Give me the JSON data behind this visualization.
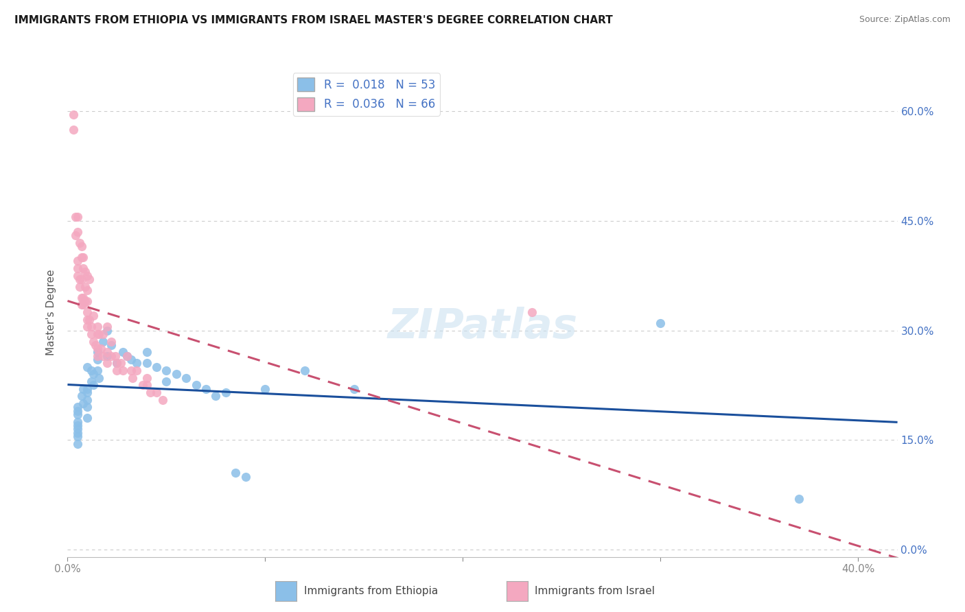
{
  "title": "IMMIGRANTS FROM ETHIOPIA VS IMMIGRANTS FROM ISRAEL MASTER'S DEGREE CORRELATION CHART",
  "source": "Source: ZipAtlas.com",
  "ylabel": "Master's Degree",
  "yticks": [
    0.0,
    0.15,
    0.3,
    0.45,
    0.6
  ],
  "ytick_labels": [
    "0.0%",
    "15.0%",
    "30.0%",
    "45.0%",
    "60.0%"
  ],
  "xlim": [
    0.0,
    0.42
  ],
  "ylim": [
    -0.01,
    0.66
  ],
  "legend_eth": "R =  0.018   N = 53",
  "legend_isr": "R =  0.036   N = 66",
  "eth_color": "#8BBFE8",
  "isr_color": "#F4A8C0",
  "eth_line_color": "#1A4F9C",
  "isr_line_color": "#C85070",
  "watermark": "ZIPatlas",
  "eth_x": [
    0.005,
    0.005,
    0.005,
    0.005,
    0.005,
    0.005,
    0.005,
    0.005,
    0.005,
    0.007,
    0.008,
    0.008,
    0.01,
    0.01,
    0.01,
    0.01,
    0.01,
    0.01,
    0.012,
    0.012,
    0.013,
    0.013,
    0.015,
    0.015,
    0.015,
    0.016,
    0.018,
    0.02,
    0.02,
    0.022,
    0.025,
    0.028,
    0.03,
    0.032,
    0.035,
    0.04,
    0.04,
    0.045,
    0.05,
    0.05,
    0.055,
    0.06,
    0.065,
    0.07,
    0.075,
    0.08,
    0.085,
    0.09,
    0.1,
    0.12,
    0.145,
    0.3,
    0.37
  ],
  "eth_y": [
    0.195,
    0.19,
    0.185,
    0.175,
    0.17,
    0.165,
    0.16,
    0.155,
    0.145,
    0.21,
    0.22,
    0.2,
    0.25,
    0.22,
    0.215,
    0.205,
    0.195,
    0.18,
    0.245,
    0.23,
    0.24,
    0.225,
    0.27,
    0.26,
    0.245,
    0.235,
    0.285,
    0.3,
    0.265,
    0.28,
    0.255,
    0.27,
    0.265,
    0.26,
    0.255,
    0.27,
    0.255,
    0.25,
    0.245,
    0.23,
    0.24,
    0.235,
    0.225,
    0.22,
    0.21,
    0.215,
    0.105,
    0.1,
    0.22,
    0.245,
    0.22,
    0.31,
    0.07
  ],
  "isr_x": [
    0.003,
    0.003,
    0.004,
    0.004,
    0.005,
    0.005,
    0.005,
    0.005,
    0.005,
    0.006,
    0.006,
    0.006,
    0.007,
    0.007,
    0.007,
    0.007,
    0.007,
    0.008,
    0.008,
    0.008,
    0.008,
    0.009,
    0.009,
    0.009,
    0.01,
    0.01,
    0.01,
    0.01,
    0.01,
    0.01,
    0.011,
    0.011,
    0.012,
    0.012,
    0.013,
    0.013,
    0.014,
    0.015,
    0.015,
    0.015,
    0.015,
    0.016,
    0.017,
    0.018,
    0.018,
    0.02,
    0.02,
    0.02,
    0.022,
    0.022,
    0.024,
    0.025,
    0.025,
    0.027,
    0.028,
    0.03,
    0.032,
    0.033,
    0.035,
    0.038,
    0.04,
    0.04,
    0.042,
    0.045,
    0.048,
    0.235
  ],
  "isr_y": [
    0.595,
    0.575,
    0.455,
    0.43,
    0.455,
    0.435,
    0.395,
    0.385,
    0.375,
    0.42,
    0.37,
    0.36,
    0.415,
    0.4,
    0.37,
    0.345,
    0.335,
    0.4,
    0.385,
    0.345,
    0.335,
    0.38,
    0.36,
    0.34,
    0.375,
    0.355,
    0.34,
    0.325,
    0.315,
    0.305,
    0.37,
    0.315,
    0.305,
    0.295,
    0.32,
    0.285,
    0.28,
    0.305,
    0.295,
    0.275,
    0.265,
    0.295,
    0.275,
    0.295,
    0.265,
    0.305,
    0.27,
    0.255,
    0.285,
    0.265,
    0.265,
    0.255,
    0.245,
    0.255,
    0.245,
    0.265,
    0.245,
    0.235,
    0.245,
    0.225,
    0.235,
    0.225,
    0.215,
    0.215,
    0.205,
    0.325
  ]
}
